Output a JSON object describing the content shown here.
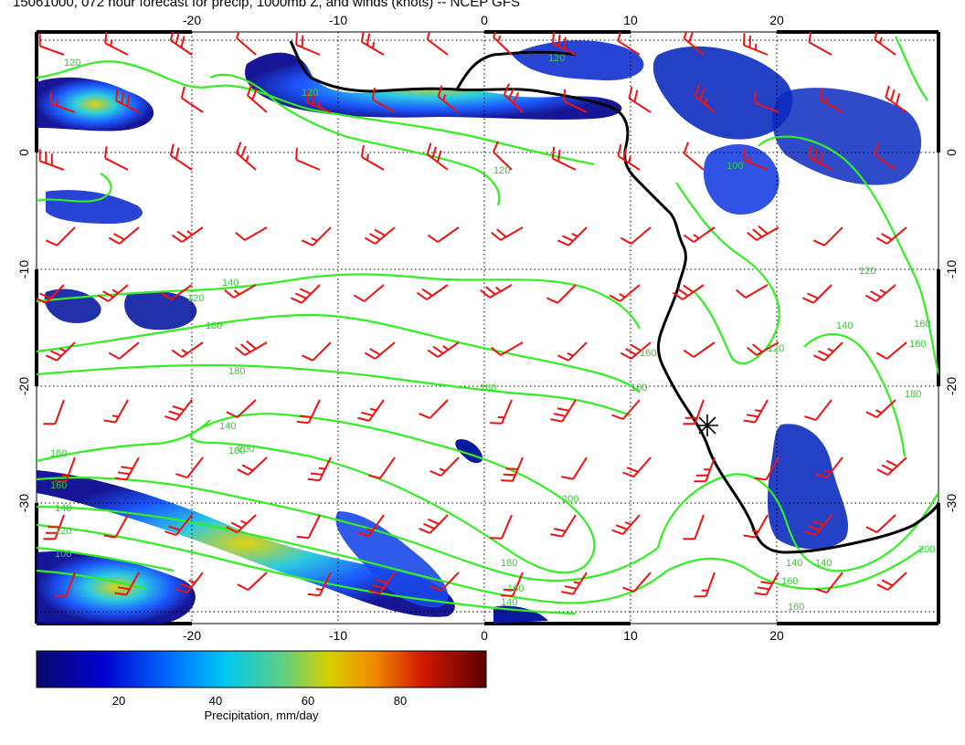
{
  "title": "15061000, 072 hour forecast for precip, 1000mb Z, and winds (knots) -- NCEP GFS",
  "map": {
    "x_ticks": [
      "-20",
      "-10",
      "0",
      "10",
      "20"
    ],
    "y_ticks": [
      "0",
      "-10",
      "-20",
      "-30"
    ],
    "contour_labels": [
      "120",
      "120",
      "120",
      "120",
      "100",
      "120",
      "140",
      "160",
      "180",
      "180",
      "180",
      "160",
      "140",
      "200",
      "200",
      "180",
      "160",
      "140",
      "180",
      "160",
      "140",
      "120",
      "100",
      "160",
      "120",
      "140",
      "120",
      "140",
      "160",
      "180",
      "200",
      "160",
      "140",
      "160",
      "180"
    ],
    "colors": {
      "contour": "#33ee22",
      "wind_barb": "#ee1111",
      "coastline": "#000000",
      "grid": "#000000"
    },
    "marker_icon": "asterisk-marker"
  },
  "colorbar": {
    "label": "Precipitation, mm/day",
    "ticks": [
      "20",
      "40",
      "60",
      "80"
    ],
    "palette": [
      "#0a0a78",
      "#0000cc",
      "#0060ff",
      "#00b4ff",
      "#30d0c0",
      "#80d060",
      "#d8d000",
      "#f09000",
      "#d82000",
      "#a00000",
      "#600000"
    ]
  }
}
